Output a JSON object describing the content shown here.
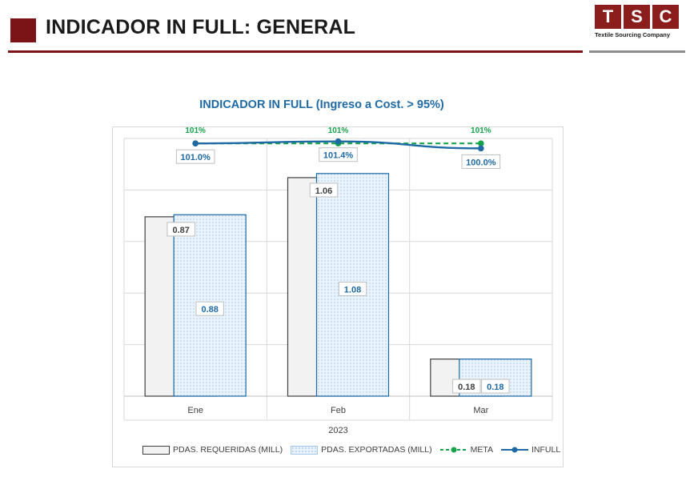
{
  "header": {
    "title": "INDICADOR IN FULL: GENERAL",
    "logo_letters": [
      "T",
      "S",
      "C"
    ],
    "logo_subtitle": "Textile Sourcing Company",
    "brand_color": "#7a1416"
  },
  "chart_data": {
    "type": "bar",
    "title": "INDICADOR IN FULL (Ingreso a Cost. > 95%)",
    "categories": [
      "Ene",
      "Feb",
      "Mar"
    ],
    "xlabel": "2023",
    "bar_ylim": [
      0,
      1.25
    ],
    "line_ylim": [
      0.5,
      1.02
    ],
    "grid": true,
    "legend_position": "bottom",
    "series": [
      {
        "name": "PDAS. REQUERIDAS (MILL)",
        "kind": "bar",
        "values": [
          0.87,
          1.06,
          0.18
        ],
        "labels": [
          "0.87",
          "1.06",
          "0.18"
        ],
        "color": "#f2f2f2"
      },
      {
        "name": "PDAS. EXPORTADAS (MILL)",
        "kind": "bar",
        "values": [
          0.88,
          1.08,
          0.18
        ],
        "labels": [
          "0.88",
          "1.08",
          "0.18"
        ],
        "color": "#1f6aa5"
      },
      {
        "name": "META",
        "kind": "line",
        "values": [
          1.01,
          1.01,
          1.01
        ],
        "labels": [
          "101%",
          "101%",
          "101%"
        ],
        "color": "#16a34a",
        "dashed": true
      },
      {
        "name": "INFULL",
        "kind": "line",
        "values": [
          1.01,
          1.014,
          1.0
        ],
        "labels": [
          "101.0%",
          "101.4%",
          "100.0%"
        ],
        "color": "#1f6aa5"
      }
    ]
  }
}
